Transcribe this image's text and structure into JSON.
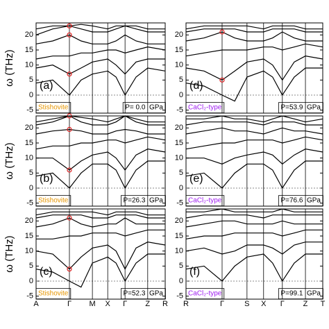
{
  "chart_data": [
    {
      "type": "line",
      "label": "(a)",
      "material": "Stishovite",
      "material_color": "#e69500",
      "pressure": "P= 0.0  GPa",
      "ylabel": "ω (THz)",
      "x": [
        0,
        0.5,
        1,
        1.35,
        1.69,
        2.15,
        2.4,
        2.67,
        3.0,
        3.35,
        3.875
      ],
      "xlim": [
        0,
        3.875
      ],
      "xticks": [
        0,
        1,
        1.69,
        2.15,
        2.67,
        3.35,
        3.875
      ],
      "ylim": [
        -6,
        24
      ],
      "yticks": [
        -5,
        0,
        5,
        10,
        15,
        20
      ],
      "series": [
        {
          "color": "#000000",
          "values": [
            4,
            5,
            0,
            5,
            7,
            8,
            6,
            0,
            6,
            9,
            8
          ]
        },
        {
          "color": "#000000",
          "values": [
            9,
            10,
            7,
            9,
            11,
            12,
            10,
            7,
            11,
            12,
            12
          ]
        },
        {
          "color": "#000000",
          "values": [
            12,
            13,
            13,
            14,
            14,
            15,
            15,
            14,
            15,
            16,
            15
          ]
        },
        {
          "color": "#000000",
          "values": [
            17,
            18,
            20,
            18,
            17,
            17,
            18,
            20,
            18,
            17,
            17
          ]
        },
        {
          "color": "#000000",
          "values": [
            20,
            22,
            23,
            22,
            21,
            21,
            22,
            23,
            22,
            21,
            21
          ]
        },
        {
          "color": "#000000",
          "values": [
            22,
            23,
            23,
            23.5,
            23,
            22,
            23,
            23,
            23,
            22,
            22
          ]
        }
      ],
      "circles": {
        "x": 1,
        "values": [
          7,
          20,
          23
        ],
        "color": "#e02020"
      }
    },
    {
      "type": "line",
      "label": "(b)",
      "material": "Stishovite",
      "material_color": "#e69500",
      "pressure": "P=26.3  GPa",
      "ylabel": "ω (THz)",
      "x": [
        0,
        0.5,
        1,
        1.35,
        1.69,
        2.15,
        2.4,
        2.67,
        3.0,
        3.35,
        3.875
      ],
      "xlim": [
        0,
        3.875
      ],
      "xticks": [
        0,
        1,
        1.69,
        2.15,
        2.67,
        3.35,
        3.875
      ],
      "ylim": [
        -6,
        24
      ],
      "yticks": [
        -5,
        0,
        5,
        10,
        15,
        20
      ],
      "series": [
        {
          "color": "#000000",
          "values": [
            4,
            5,
            0,
            5,
            8,
            8,
            6,
            0,
            6,
            9,
            9
          ]
        },
        {
          "color": "#000000",
          "values": [
            10,
            10,
            6,
            9,
            11,
            12,
            10,
            6,
            11,
            13,
            12
          ]
        },
        {
          "color": "#000000",
          "values": [
            13,
            14,
            14,
            15,
            15,
            16,
            16,
            15,
            16,
            17,
            16
          ]
        },
        {
          "color": "#000000",
          "values": [
            18,
            19,
            19.5,
            19,
            18,
            18,
            19,
            19.5,
            19,
            18,
            18
          ]
        },
        {
          "color": "#000000",
          "values": [
            21,
            22,
            24,
            22,
            21,
            21,
            22,
            24,
            22,
            21,
            21
          ]
        },
        {
          "color": "#000000",
          "values": [
            22,
            23,
            24,
            23.5,
            23,
            22,
            23,
            24,
            23,
            22,
            22
          ]
        }
      ],
      "circles": {
        "x": 1,
        "values": [
          6,
          19.5,
          24
        ],
        "color": "#e02020"
      }
    },
    {
      "type": "line",
      "label": "(c)",
      "material": "Stishovite",
      "material_color": "#e69500",
      "pressure": "P=52.3  GPa",
      "ylabel": "ω (THz)",
      "x": [
        0,
        0.5,
        1,
        1.35,
        1.69,
        2.15,
        2.4,
        2.67,
        3.0,
        3.35,
        3.875
      ],
      "xlim": [
        0,
        3.875
      ],
      "xticks": [
        {
          "value": 0,
          "label": "A"
        },
        {
          "value": 1,
          "label": "Γ"
        },
        {
          "value": 1.69,
          "label": "M"
        },
        {
          "value": 2.15,
          "label": "X"
        },
        {
          "value": 2.67,
          "label": "Γ"
        },
        {
          "value": 3.35,
          "label": "Z"
        },
        {
          "value": 3.875,
          "label": "R"
        }
      ],
      "ylim": [
        -6,
        24
      ],
      "yticks": [
        -5,
        0,
        5,
        10,
        15,
        20
      ],
      "series": [
        {
          "color": "#000000",
          "values": [
            4,
            3,
            0,
            -2,
            6,
            8,
            6,
            0,
            6,
            9,
            9
          ]
        },
        {
          "color": "#000000",
          "values": [
            10,
            9,
            4,
            8,
            11,
            12,
            10,
            4,
            11,
            13,
            12
          ]
        },
        {
          "color": "#000000",
          "values": [
            14,
            14,
            15,
            15,
            16,
            16,
            16,
            15,
            16,
            17,
            17
          ]
        },
        {
          "color": "#000000",
          "values": [
            18,
            19,
            21,
            19,
            18,
            19,
            19,
            21,
            19,
            19,
            19
          ]
        },
        {
          "color": "#000000",
          "values": [
            21,
            22,
            22,
            22,
            21,
            21,
            22,
            22,
            22,
            21,
            21
          ]
        },
        {
          "color": "#000000",
          "values": [
            22,
            23,
            23,
            23,
            23,
            22,
            23,
            23,
            23,
            22,
            22
          ]
        }
      ],
      "circles": {
        "x": 1,
        "values": [
          4,
          21
        ],
        "color": "#e02020"
      }
    },
    {
      "type": "line",
      "label": "(d)",
      "material": "CaCl₂-type",
      "material_color": "#a020f0",
      "pressure": "P=53.9  GPa",
      "x": [
        0,
        0.5,
        1,
        1.35,
        1.69,
        2.15,
        2.4,
        2.67,
        3.0,
        3.31,
        3.79
      ],
      "xlim": [
        0,
        3.79
      ],
      "xticks": [
        0,
        1,
        1.69,
        2.15,
        2.67,
        3.31,
        3.79
      ],
      "ylim": [
        -6,
        24
      ],
      "yticks": [
        -5,
        0,
        5,
        10,
        15,
        20
      ],
      "series": [
        {
          "color": "#000000",
          "values": [
            4,
            3,
            0,
            -2,
            6,
            8,
            6,
            0,
            6,
            9,
            9
          ]
        },
        {
          "color": "#000000",
          "values": [
            9,
            8,
            5,
            8,
            11,
            12,
            10,
            5,
            11,
            13,
            12
          ]
        },
        {
          "color": "#000000",
          "values": [
            13,
            14,
            15,
            15,
            15,
            16,
            16,
            15,
            16,
            17,
            16
          ]
        },
        {
          "color": "#000000",
          "values": [
            18,
            19,
            21,
            19,
            18,
            18,
            19,
            21,
            19,
            18,
            18
          ]
        },
        {
          "color": "#000000",
          "values": [
            21,
            22,
            22,
            22,
            21,
            21,
            22,
            22,
            22,
            21,
            21
          ]
        },
        {
          "color": "#000000",
          "values": [
            22,
            23,
            23,
            23,
            23,
            22,
            23,
            23,
            23,
            22,
            22
          ]
        }
      ],
      "circles": {
        "x": 1,
        "values": [
          5,
          21
        ],
        "color": "#e02020"
      }
    },
    {
      "type": "line",
      "label": "(e)",
      "material": "CaCl₂-type",
      "material_color": "#a020f0",
      "pressure": "P=76.6  GPa",
      "x": [
        0,
        0.5,
        1,
        1.35,
        1.69,
        2.15,
        2.4,
        2.67,
        3.0,
        3.31,
        3.79
      ],
      "xlim": [
        0,
        3.79
      ],
      "xticks": [
        0,
        1,
        1.69,
        2.15,
        2.67,
        3.31,
        3.79
      ],
      "ylim": [
        -6,
        24
      ],
      "yticks": [
        -5,
        0,
        5,
        10,
        15,
        20
      ],
      "series": [
        {
          "color": "#000000",
          "values": [
            4,
            5,
            0,
            5,
            8,
            8,
            6,
            0,
            6,
            9,
            9
          ]
        },
        {
          "color": "#000000",
          "values": [
            10,
            10,
            8,
            10,
            11,
            12,
            11,
            8,
            11,
            13,
            12
          ]
        },
        {
          "color": "#000000",
          "values": [
            13,
            14,
            15,
            15,
            16,
            16,
            16,
            15,
            16,
            17,
            16
          ]
        },
        {
          "color": "#000000",
          "values": [
            18,
            19,
            20,
            19,
            19,
            18,
            19,
            20,
            19,
            19,
            18
          ]
        },
        {
          "color": "#000000",
          "values": [
            21,
            22,
            22,
            22,
            22,
            21,
            22,
            22,
            22,
            21,
            21
          ]
        },
        {
          "color": "#000000",
          "values": [
            23,
            23,
            24,
            23,
            23,
            22,
            23,
            24,
            23,
            22,
            23
          ]
        }
      ]
    },
    {
      "type": "line",
      "label": "(f)",
      "material": "CaCl₂-type",
      "material_color": "#a020f0",
      "pressure": "P=99.1  GPa",
      "x": [
        0,
        0.5,
        1,
        1.35,
        1.69,
        2.15,
        2.4,
        2.67,
        3.0,
        3.31,
        3.79
      ],
      "xlim": [
        0,
        3.79
      ],
      "xticks": [
        {
          "value": 0,
          "label": "R"
        },
        {
          "value": 1,
          "label": "Γ"
        },
        {
          "value": 1.69,
          "label": "S"
        },
        {
          "value": 2.15,
          "label": "X"
        },
        {
          "value": 2.67,
          "label": "Γ"
        },
        {
          "value": 3.31,
          "label": "Z"
        },
        {
          "value": 3.79,
          "label": "T"
        }
      ],
      "ylim": [
        -6,
        24
      ],
      "yticks": [
        -5,
        0,
        5,
        10,
        15,
        20
      ],
      "series": [
        {
          "color": "#000000",
          "values": [
            4,
            5,
            0,
            5,
            8,
            9,
            6,
            0,
            6,
            9,
            9
          ]
        },
        {
          "color": "#000000",
          "values": [
            10,
            11,
            9,
            10,
            12,
            12,
            11,
            9,
            12,
            13,
            13
          ]
        },
        {
          "color": "#000000",
          "values": [
            14,
            15,
            15,
            16,
            16,
            16,
            16,
            15,
            16,
            17,
            17
          ]
        },
        {
          "color": "#000000",
          "values": [
            18,
            19,
            20,
            20,
            19,
            19,
            19,
            20,
            19,
            19,
            19
          ]
        },
        {
          "color": "#000000",
          "values": [
            21,
            22,
            22,
            22,
            22,
            21,
            22,
            22,
            22,
            22,
            22
          ]
        },
        {
          "color": "#000000",
          "values": [
            23,
            23,
            24,
            23,
            23,
            23,
            23,
            24,
            23,
            23,
            23
          ]
        }
      ]
    }
  ]
}
